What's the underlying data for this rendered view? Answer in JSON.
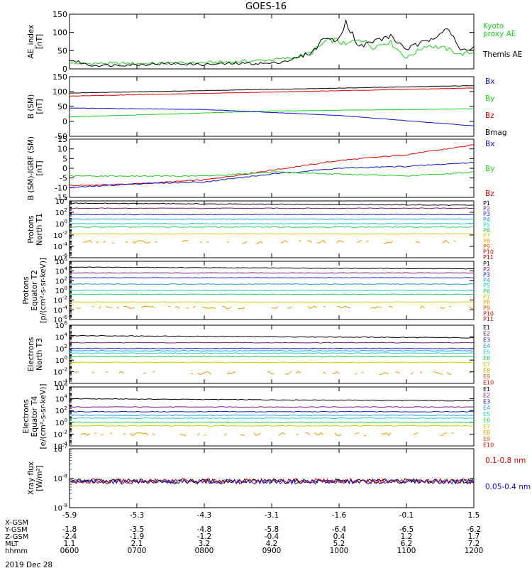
{
  "title": "GOES-16",
  "date_label": "2019 Dec 28",
  "colors": {
    "black": "#000000",
    "red": "#dd0000",
    "green": "#22cc22",
    "blue": "#1010cc",
    "P": [
      "#000000",
      "#7a1a7a",
      "#1a1acc",
      "#1a9ad8",
      "#22c8c8",
      "#22cc55",
      "#cccc00",
      "#e09a00",
      "#dd5500",
      "#dd0000",
      "#bb0000"
    ],
    "E": [
      "#000000",
      "#7a1a7a",
      "#1a1acc",
      "#1a9ad8",
      "#22c8c8",
      "#22cc55",
      "#cccc00",
      "#e09a00",
      "#dd5500",
      "#dd0000"
    ]
  },
  "x_axis": {
    "ticks": [
      "-5.9",
      "-5.3",
      "-4.3",
      "-3.1",
      "-1.6",
      "-0.1",
      "1.5"
    ],
    "rows": [
      {
        "label": "X-GSM",
        "values": [
          "-5.9",
          "-5.3",
          "-4.3",
          "-3.1",
          "-1.6",
          "-0.1",
          "1.5"
        ]
      },
      {
        "label": "Y-GSM",
        "values": [
          "-1.8",
          "-3.5",
          "-4.8",
          "-5.8",
          "-6.4",
          "-6.5",
          "-6.2"
        ]
      },
      {
        "label": "Z-GSM",
        "values": [
          "-2.4",
          "-1.9",
          "-1.2",
          "-0.4",
          "0.4",
          "1.2",
          "1.7"
        ]
      },
      {
        "label": "MLT",
        "values": [
          "1.1",
          "2.1",
          "3.2",
          "4.2",
          "5.2",
          "6.2",
          "7.2"
        ]
      },
      {
        "label": "hhmm",
        "values": [
          "0600",
          "0700",
          "0800",
          "0900",
          "1000",
          "1100",
          "1200"
        ]
      }
    ]
  },
  "chart_data": [
    {
      "type": "line",
      "ylabel": [
        "AE_index",
        "[nT]"
      ],
      "ylim": [
        0,
        150
      ],
      "ticks": [
        0,
        50,
        100,
        150
      ],
      "legend": [
        {
          "text": "Kyoto",
          "color": "#22cc22"
        },
        {
          "text": "proxy AE",
          "color": "#22cc22"
        },
        {
          "text": "Themis AE",
          "color": "#000000"
        }
      ],
      "series": [
        {
          "name": "Kyoto proxy AE",
          "color": "#22cc22",
          "x": [
            6.0,
            6.5,
            7.0,
            7.5,
            8.0,
            8.5,
            9.0,
            9.3,
            9.6,
            9.8,
            9.95,
            10.1,
            10.3,
            10.5,
            10.75,
            11.0,
            11.3,
            11.6,
            11.8,
            12.0
          ],
          "y": [
            15,
            15,
            15,
            15,
            17,
            20,
            25,
            30,
            45,
            75,
            80,
            65,
            85,
            60,
            75,
            30,
            65,
            55,
            40,
            45
          ]
        },
        {
          "name": "Themis AE",
          "color": "#000000",
          "x": [
            6.0,
            6.3,
            6.6,
            7.0,
            7.5,
            8.0,
            8.5,
            9.0,
            9.3,
            9.6,
            9.8,
            9.95,
            10.1,
            10.3,
            10.5,
            10.75,
            11.0,
            11.3,
            11.6,
            11.8,
            12.0
          ],
          "y": [
            25,
            10,
            10,
            12,
            15,
            12,
            15,
            15,
            25,
            45,
            90,
            70,
            130,
            60,
            75,
            90,
            55,
            75,
            115,
            50,
            60
          ]
        }
      ]
    },
    {
      "type": "line",
      "ylabel": [
        "B (SM)",
        "[nT]"
      ],
      "ylim": [
        -50,
        150
      ],
      "ticks": [
        -50,
        0,
        50,
        100,
        150
      ],
      "legend": [
        {
          "text": "Bx",
          "color": "#1010cc"
        },
        {
          "text": "By",
          "color": "#22cc22"
        },
        {
          "text": "Bz",
          "color": "#dd0000"
        },
        {
          "text": "Bmag",
          "color": "#000000"
        }
      ],
      "series": [
        {
          "name": "Bmag",
          "color": "#000000",
          "x": [
            6,
            12
          ],
          "y": [
            95,
            120
          ]
        },
        {
          "name": "Bz",
          "color": "#dd0000",
          "x": [
            6,
            12
          ],
          "y": [
            85,
            112
          ]
        },
        {
          "name": "By",
          "color": "#22cc22",
          "x": [
            6,
            9,
            12
          ],
          "y": [
            15,
            35,
            42
          ]
        },
        {
          "name": "Bx",
          "color": "#1010cc",
          "x": [
            6,
            8,
            10,
            12
          ],
          "y": [
            45,
            40,
            20,
            -15
          ]
        }
      ]
    },
    {
      "type": "line",
      "ylabel": [
        "B (SM)-IGRF (SM)",
        "[nT]"
      ],
      "ylim": [
        -15,
        15
      ],
      "ticks": [
        -15,
        -10,
        -5,
        0,
        5,
        10,
        15
      ],
      "legend": [
        {
          "text": "Bx",
          "color": "#1010cc"
        },
        {
          "text": "By",
          "color": "#22cc22"
        },
        {
          "text": "Bz",
          "color": "#dd0000"
        }
      ],
      "series": [
        {
          "name": "Bz",
          "color": "#dd0000",
          "x": [
            6.0,
            7.0,
            8.0,
            9.0,
            10.0,
            11.0,
            12.0
          ],
          "y": [
            -9,
            -8,
            -6,
            -1,
            4,
            7,
            12
          ]
        },
        {
          "name": "Bx",
          "color": "#1010cc",
          "x": [
            6.0,
            7.0,
            8.0,
            9.0,
            10.0,
            11.0,
            12.0
          ],
          "y": [
            -10,
            -8,
            -7,
            -3,
            0,
            1,
            3
          ]
        },
        {
          "name": "By",
          "color": "#22cc22",
          "x": [
            6.0,
            7.0,
            8.0,
            9.0,
            10.0,
            11.0,
            12.0
          ],
          "y": [
            -4,
            -4,
            -4,
            -2,
            -3,
            -4,
            -2
          ]
        }
      ]
    },
    {
      "type": "line",
      "log": true,
      "ylabel": [
        "Protons",
        "North T1"
      ],
      "ylim": [
        -6,
        4
      ],
      "ticks": [
        4,
        2,
        0,
        -2,
        -4,
        -6
      ],
      "channels": [
        "P1",
        "P2",
        "P3",
        "P4",
        "P5",
        "P6",
        "P7",
        "P8",
        "P9",
        "P10",
        "P11"
      ],
      "levels": [
        3.6,
        2.7,
        1.6,
        0.8,
        0.0,
        -0.6,
        -1.8,
        -3.2
      ]
    },
    {
      "type": "line",
      "log": true,
      "ylabel": [
        "Protons",
        "Equator T2",
        "[p/(cm²-s-sr-keV)]"
      ],
      "ylim": [
        -6,
        6
      ],
      "ticks": [
        6,
        4,
        2,
        0,
        -2,
        -4,
        -6
      ],
      "channels": [
        "P1",
        "P2",
        "P3",
        "P4",
        "P5",
        "P6",
        "P7",
        "P8",
        "P9",
        "P10",
        "P11"
      ],
      "levels": [
        4.8,
        3.6,
        2.6,
        1.3,
        0.0,
        -0.8,
        -2.4,
        -3.5
      ]
    },
    {
      "type": "line",
      "log": true,
      "ylabel": [
        "Electrons",
        "North T3"
      ],
      "ylim": [
        -4,
        6
      ],
      "ticks": [
        6,
        4,
        2,
        0,
        -2,
        -4
      ],
      "channels": [
        "E1",
        "E2",
        "E3",
        "E4",
        "E5",
        "E6",
        "E7",
        "E8",
        "E9",
        "E10"
      ],
      "levels": [
        4.2,
        3.0,
        2.0,
        1.6,
        1.2,
        0.6,
        -0.4,
        -2.2
      ]
    },
    {
      "type": "line",
      "log": true,
      "ylabel": [
        "Electrons",
        "Equator T4",
        "[e/(cm²-s-sr-keV)]"
      ],
      "ylim": [
        -4,
        6
      ],
      "ticks": [
        6,
        4,
        2,
        0,
        -2,
        -4
      ],
      "channels": [
        "E1",
        "E2",
        "E3",
        "E4",
        "E5",
        "E6",
        "E7",
        "E8",
        "E9",
        "E10"
      ],
      "levels": [
        4.0,
        2.6,
        1.8,
        1.2,
        0.7,
        0.0,
        -0.6,
        -2.0
      ]
    },
    {
      "type": "line",
      "log": true,
      "ylabel": [
        "Xray flux",
        "[W/m²]"
      ],
      "ylim": [
        -9,
        -7
      ],
      "ticks": [
        -7,
        -8,
        -9
      ],
      "legend": [
        {
          "text": "0.1-0.8 nm",
          "color": "#dd0000"
        },
        {
          "text": "0.05-0.4 nm",
          "color": "#1010cc"
        }
      ],
      "levels": [
        -8.1,
        -8.1,
        -8.12
      ]
    }
  ]
}
